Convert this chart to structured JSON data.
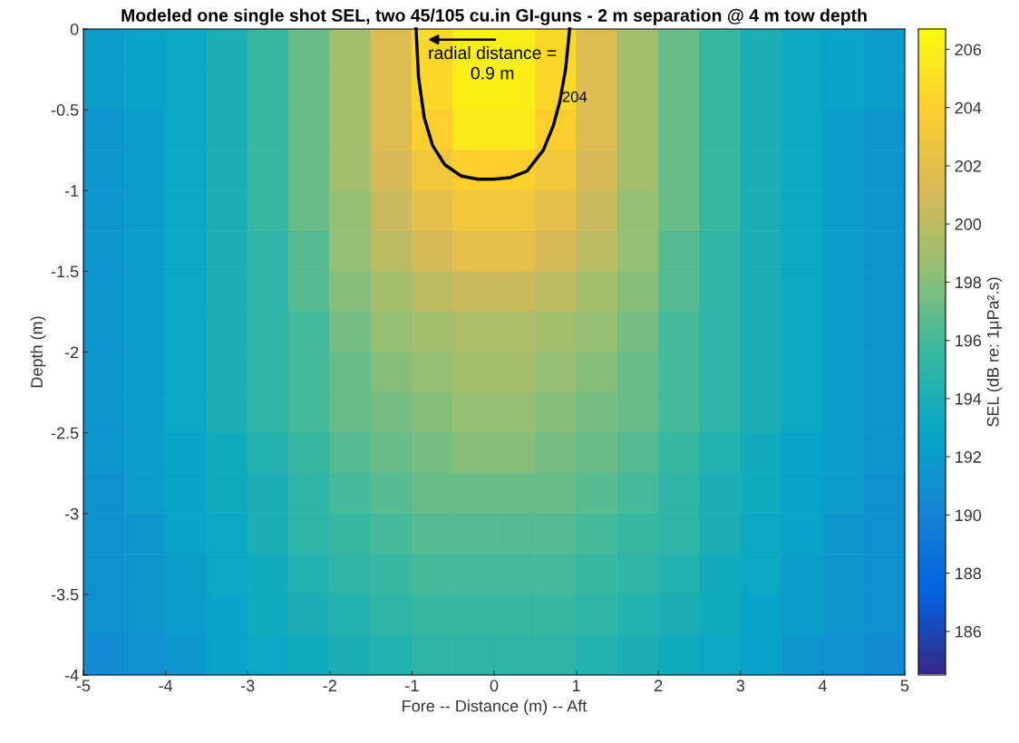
{
  "chart_data": {
    "type": "heatmap",
    "title": "Modeled one single shot SEL, two 45/105 cu.in GI-guns - 2 m separation @ 4 m tow depth",
    "xlabel": "Fore -- Distance (m) -- Aft",
    "ylabel": "Depth (m)",
    "clabel": "SEL (dB re: 1μPa².s)",
    "xlim": [
      -5,
      5
    ],
    "ylim": [
      -4,
      0
    ],
    "xticks": [
      -5,
      -4,
      -3,
      -2,
      -1,
      0,
      1,
      2,
      3,
      4,
      5
    ],
    "yticks": [
      -4,
      -3.5,
      -3,
      -2.5,
      -2,
      -1.5,
      -1,
      -0.5,
      0
    ],
    "clim": [
      184.5,
      206.7
    ],
    "cticks": [
      186,
      188,
      190,
      192,
      194,
      196,
      198,
      200,
      202,
      204,
      206
    ],
    "cells": [
      [
        192,
        192.5,
        193,
        194,
        195.5,
        197,
        199,
        201.5,
        204.5,
        206,
        206,
        204.5,
        201.5,
        199,
        197,
        195.5,
        194,
        193,
        192.5,
        192
      ],
      [
        192,
        192.5,
        193,
        194,
        195.5,
        197,
        199,
        201.5,
        204.5,
        206,
        206,
        204.5,
        201.5,
        199,
        197,
        195.5,
        194,
        193,
        192.5,
        192
      ],
      [
        191.5,
        192,
        193,
        194,
        195.5,
        197,
        199,
        201.5,
        204,
        205.5,
        205.5,
        204,
        201.5,
        199,
        197,
        195.5,
        194,
        193,
        192,
        191.5
      ],
      [
        191.5,
        192,
        193,
        194,
        195.5,
        197,
        199,
        201,
        203,
        204,
        204,
        203,
        201,
        199,
        197,
        195.5,
        194,
        193,
        192,
        191.5
      ],
      [
        191.5,
        192,
        193,
        194,
        195.5,
        197,
        198.5,
        200.5,
        202,
        203,
        203,
        202,
        200.5,
        198.5,
        197,
        195.5,
        194,
        193,
        192,
        191.5
      ],
      [
        191.5,
        192,
        193,
        194,
        195,
        196.5,
        198.5,
        200,
        201,
        202,
        202,
        201,
        200,
        198.5,
        196.5,
        195,
        194,
        193,
        192,
        191.5
      ],
      [
        191.5,
        192,
        193,
        194,
        195,
        196.5,
        198,
        199,
        200,
        200.5,
        200.5,
        200,
        199,
        198,
        196.5,
        195,
        194,
        193,
        192,
        191.5
      ],
      [
        191.5,
        192,
        193,
        194,
        195,
        196,
        197.5,
        198.5,
        199,
        199.5,
        199.5,
        199,
        198.5,
        197.5,
        196,
        195,
        194,
        193,
        192,
        191.5
      ],
      [
        191.5,
        192,
        193,
        194,
        195,
        196,
        197,
        198,
        198.5,
        199,
        199,
        198.5,
        198,
        197,
        196,
        195,
        194,
        193,
        192,
        191.5
      ],
      [
        191.5,
        192,
        193,
        194,
        195,
        196,
        197,
        197.5,
        198,
        198.5,
        198.5,
        198,
        197.5,
        197,
        196,
        195,
        194,
        193,
        192,
        191.5
      ],
      [
        191.5,
        192,
        192.5,
        193.5,
        194.5,
        195.5,
        196.5,
        197,
        197.5,
        198,
        198,
        197.5,
        197,
        196.5,
        195.5,
        194.5,
        193.5,
        192.5,
        192,
        191.5
      ],
      [
        191,
        192,
        192.5,
        193.5,
        194,
        195,
        196,
        196.5,
        197,
        197,
        197,
        197,
        196.5,
        196,
        195,
        194,
        193.5,
        192.5,
        192,
        191
      ],
      [
        191,
        191.5,
        192.5,
        193,
        194,
        195,
        195.5,
        196,
        196.5,
        196.5,
        196.5,
        196.5,
        196,
        195.5,
        195,
        194,
        193,
        192.5,
        191.5,
        191
      ],
      [
        191,
        191.5,
        192,
        193,
        193.5,
        194.5,
        195,
        195.5,
        196,
        196,
        196,
        196,
        195.5,
        195,
        194.5,
        193.5,
        193,
        192,
        191.5,
        191
      ],
      [
        191,
        191.5,
        192,
        192.5,
        193.5,
        194,
        194.5,
        195,
        195.5,
        195.5,
        195.5,
        195.5,
        195,
        194.5,
        194,
        193.5,
        192.5,
        192,
        191.5,
        191
      ],
      [
        190.5,
        191,
        191.5,
        192.5,
        193,
        193.5,
        194,
        194.5,
        195,
        195,
        195,
        195,
        194.5,
        194,
        193.5,
        193,
        192.5,
        191.5,
        191,
        190.5
      ]
    ],
    "series": [
      {
        "type": "line",
        "color": "#000000",
        "x": [
          -0.95,
          -0.92,
          -0.85,
          -0.75,
          -0.6,
          -0.4,
          -0.2,
          0,
          0.2,
          0.4,
          0.6,
          0.72,
          0.8,
          0.87,
          0.92
        ],
        "values": [
          0,
          -0.3,
          -0.55,
          -0.72,
          -0.84,
          -0.91,
          -0.93,
          -0.93,
          -0.92,
          -0.88,
          -0.75,
          -0.6,
          -0.45,
          -0.25,
          0
        ]
      }
    ],
    "annotations": [
      "radial distance =\n0.9 m",
      "204"
    ]
  }
}
